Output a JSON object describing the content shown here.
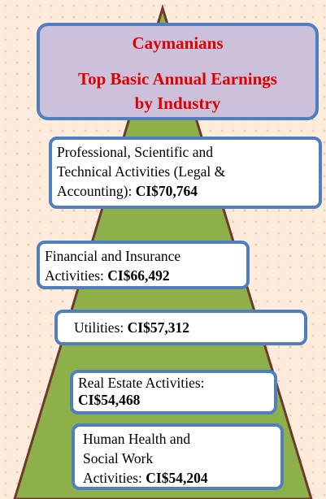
{
  "header": {
    "lines": [
      "Caymanians",
      "Top Basic Annual Earnings",
      "by Industry"
    ]
  },
  "items": [
    {
      "lines": [
        "Professional, Scientific and",
        "Technical Activities (Legal &",
        "Accounting):"
      ],
      "value": "CI$70,764"
    },
    {
      "lines": [
        "Financial and Insurance",
        "Activities:"
      ],
      "value": "CI$66,492"
    },
    {
      "lines": [
        "Utilities:"
      ],
      "value": "CI$57,312"
    },
    {
      "lines": [
        "Real Estate Activities:"
      ],
      "value": "CI$54,468"
    },
    {
      "lines": [
        "Human Health and",
        "Social Work",
        "Activities:"
      ],
      "value": "CI$54,204"
    }
  ]
}
